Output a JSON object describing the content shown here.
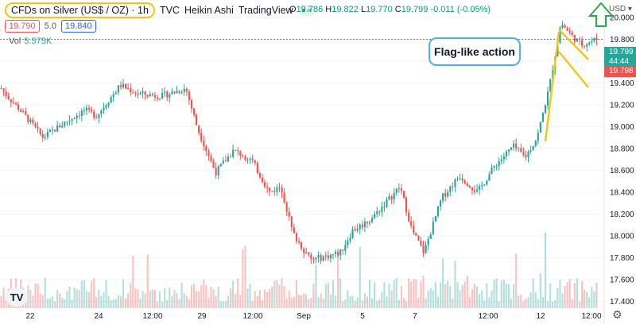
{
  "header": {
    "symbol": "CFDs on Silver (US$ / OZ)",
    "interval": "1h",
    "source": "TVC",
    "style": "Heikin Ashi",
    "provider": "TradingView",
    "ohlc": {
      "o_label": "O",
      "o": "19.786",
      "h_label": "H",
      "h": "19.822",
      "l_label": "L",
      "l": "19.770",
      "c_label": "C",
      "c": "19.799",
      "change": "-0.011 (-0.05%)"
    },
    "sell_price": "19.790",
    "spread": "5.0",
    "buy_price": "19.840",
    "vol_label": "Vol",
    "vol_value": "5.575K",
    "currency": "USD"
  },
  "annotation": "Flag-like action",
  "price_tags": {
    "last": "19.799",
    "countdown": "44:44",
    "bid": "19.798"
  },
  "colors": {
    "up": "#26a69a",
    "down": "#ef5350",
    "highlight": "#f5c518",
    "annotation_border": "#4fb1e3",
    "arrow": "#2ea84a"
  },
  "chart_data": {
    "type": "candlestick",
    "ylim": [
      17.34,
      20.1
    ],
    "y_ticks": [
      "20.000",
      "19.800",
      "19.600",
      "19.400",
      "19.200",
      "19.000",
      "18.800",
      "18.600",
      "18.400",
      "18.200",
      "18.000",
      "17.800",
      "17.600",
      "17.400"
    ],
    "x_ticks": [
      "22",
      "24",
      "12:00",
      "29",
      "12:00",
      "Sep",
      "5",
      "7",
      "12:00",
      "12",
      "12:00"
    ],
    "price_path": [
      {
        "t": 0,
        "p": 19.35
      },
      {
        "t": 0.01,
        "p": 19.28
      },
      {
        "t": 0.04,
        "p": 19.1
      },
      {
        "t": 0.07,
        "p": 18.9
      },
      {
        "t": 0.11,
        "p": 19.05
      },
      {
        "t": 0.14,
        "p": 19.15
      },
      {
        "t": 0.16,
        "p": 19.1
      },
      {
        "t": 0.2,
        "p": 19.38
      },
      {
        "t": 0.23,
        "p": 19.3
      },
      {
        "t": 0.27,
        "p": 19.28
      },
      {
        "t": 0.31,
        "p": 19.35
      },
      {
        "t": 0.33,
        "p": 18.98
      },
      {
        "t": 0.36,
        "p": 18.58
      },
      {
        "t": 0.39,
        "p": 18.78
      },
      {
        "t": 0.42,
        "p": 18.7
      },
      {
        "t": 0.45,
        "p": 18.4
      },
      {
        "t": 0.47,
        "p": 18.45
      },
      {
        "t": 0.49,
        "p": 18.02
      },
      {
        "t": 0.52,
        "p": 17.78
      },
      {
        "t": 0.55,
        "p": 17.82
      },
      {
        "t": 0.57,
        "p": 17.85
      },
      {
        "t": 0.59,
        "p": 18.05
      },
      {
        "t": 0.62,
        "p": 18.15
      },
      {
        "t": 0.645,
        "p": 18.3
      },
      {
        "t": 0.67,
        "p": 18.45
      },
      {
        "t": 0.69,
        "p": 18.05
      },
      {
        "t": 0.71,
        "p": 17.85
      },
      {
        "t": 0.74,
        "p": 18.35
      },
      {
        "t": 0.77,
        "p": 18.55
      },
      {
        "t": 0.8,
        "p": 18.4
      },
      {
        "t": 0.83,
        "p": 18.65
      },
      {
        "t": 0.86,
        "p": 18.82
      },
      {
        "t": 0.88,
        "p": 18.72
      },
      {
        "t": 0.9,
        "p": 18.9
      },
      {
        "t": 0.92,
        "p": 19.35
      },
      {
        "t": 0.94,
        "p": 19.95
      },
      {
        "t": 0.96,
        "p": 19.82
      },
      {
        "t": 0.975,
        "p": 19.75
      },
      {
        "t": 1,
        "p": 19.8
      }
    ],
    "volume_ylim": [
      0,
      1
    ]
  }
}
